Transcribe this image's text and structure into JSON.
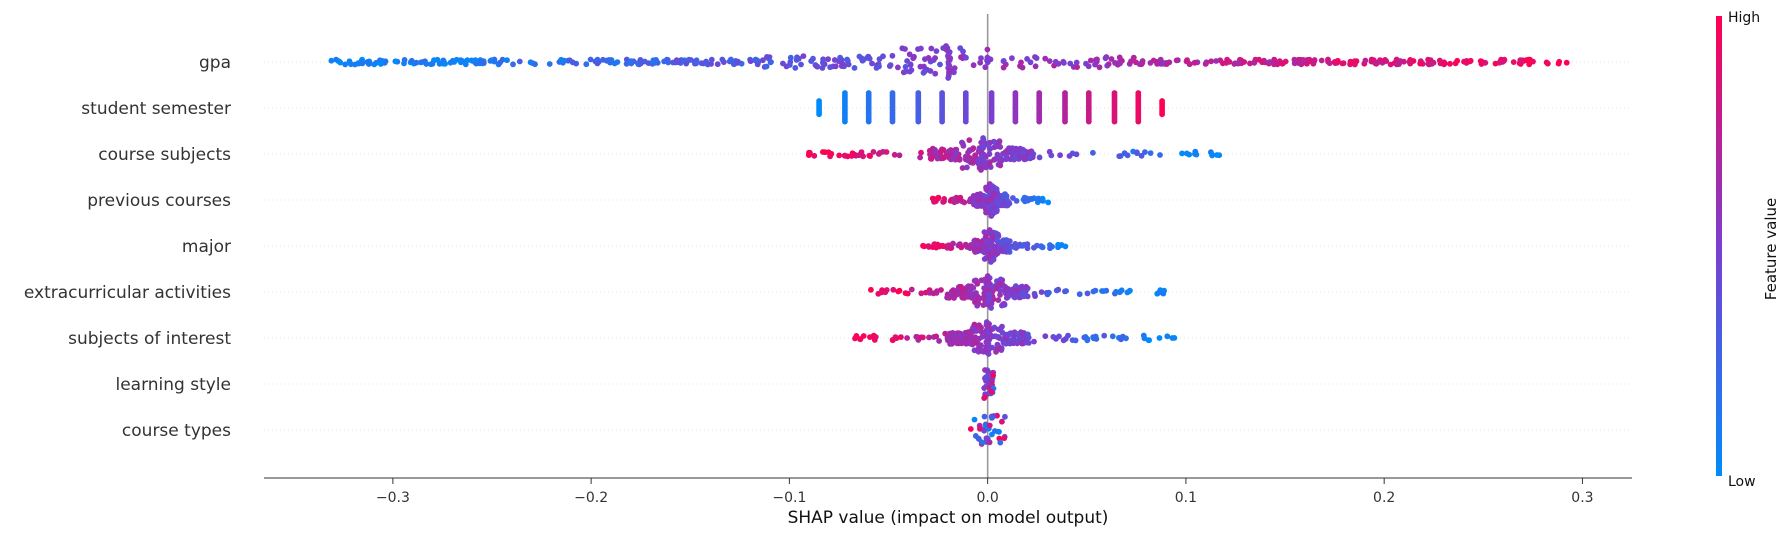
{
  "chart_data": {
    "type": "scatter",
    "subtype": "shap-beeswarm-summary",
    "title": "",
    "xlabel": "SHAP value (impact on model output)",
    "ylabel": "",
    "xlim": [
      -0.365,
      0.325
    ],
    "xticks": [
      -0.3,
      -0.2,
      -0.1,
      0.0,
      0.1,
      0.2,
      0.3
    ],
    "xtick_labels": [
      "−0.3",
      "−0.2",
      "−0.1",
      "0.0",
      "0.1",
      "0.2",
      "0.3"
    ],
    "grid": false,
    "zero_line": 0.0,
    "colorbar": {
      "title": "Feature value",
      "high_label": "High",
      "low_label": "Low",
      "position": "right",
      "low_color": "#008bfb",
      "high_color": "#ff0052"
    },
    "features": [
      {
        "name": "gpa",
        "pattern": "spread",
        "min": -0.332,
        "max": 0.294,
        "colors": "low-left-high-right",
        "cluster": -0.02
      },
      {
        "name": "student semester",
        "pattern": "columns",
        "columns": [
          -0.085,
          -0.072,
          -0.06,
          -0.048,
          -0.035,
          -0.023,
          -0.011,
          0.002,
          0.014,
          0.026,
          0.039,
          0.051,
          0.064,
          0.076,
          0.088
        ]
      },
      {
        "name": "course subjects",
        "pattern": "spread",
        "min": -0.091,
        "max": 0.119,
        "colors": "high-left-low-right",
        "cluster": -0.003
      },
      {
        "name": "previous courses",
        "pattern": "spread",
        "min": -0.03,
        "max": 0.032,
        "colors": "high-left-low-right",
        "cluster": 0.002
      },
      {
        "name": "major",
        "pattern": "spread",
        "min": -0.033,
        "max": 0.04,
        "colors": "high-left-low-right",
        "cluster": 0.002
      },
      {
        "name": "extracurricular activities",
        "pattern": "spread",
        "min": -0.063,
        "max": 0.091,
        "colors": "high-left-low-right",
        "cluster": 0.001
      },
      {
        "name": "subjects of interest",
        "pattern": "spread",
        "min": -0.069,
        "max": 0.095,
        "colors": "high-left-low-right",
        "cluster": 0.0
      },
      {
        "name": "learning style",
        "pattern": "narrow",
        "min": -0.002,
        "max": 0.003
      },
      {
        "name": "course types",
        "pattern": "narrow",
        "min": -0.009,
        "max": 0.009
      }
    ]
  }
}
